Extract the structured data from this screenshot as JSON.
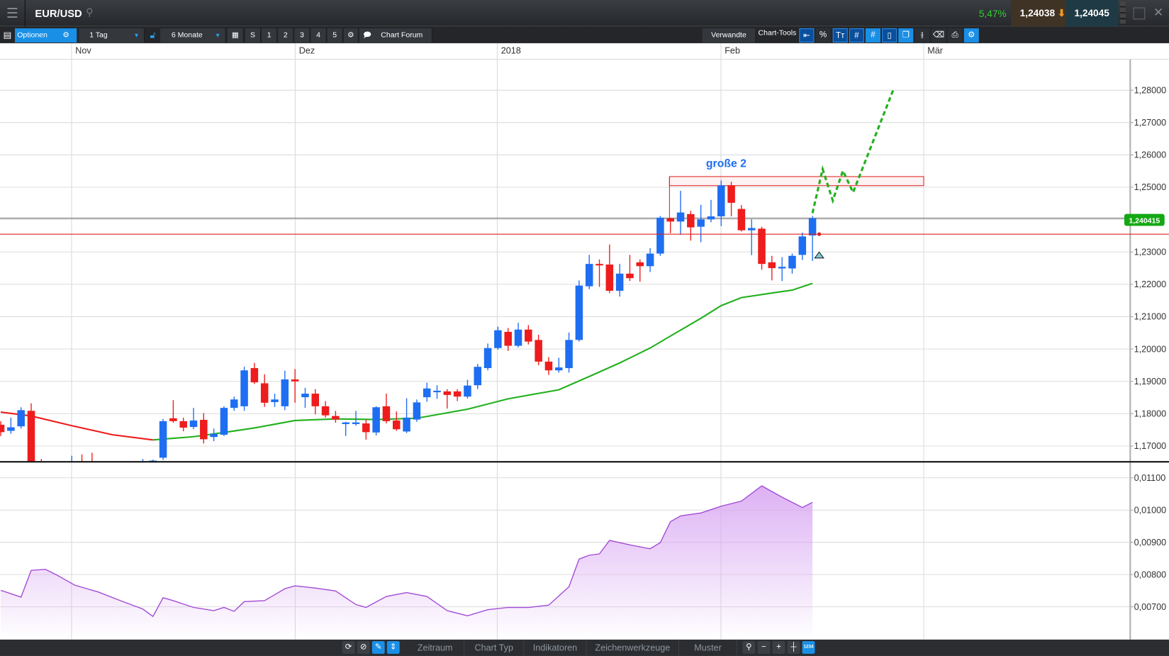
{
  "header": {
    "symbol": "EUR/USD",
    "change": "5,47%",
    "bid": "1,24038",
    "ask": "1,24045"
  },
  "toolbar": {
    "options": "Optionen",
    "interval": "1 Tag",
    "range": "6 Monate",
    "s": "S",
    "n1": "1",
    "n2": "2",
    "n3": "3",
    "n4": "4",
    "n5": "5",
    "forum": "Chart Forum",
    "related": "Verwandte",
    "chart_tools": "Chart-Tools"
  },
  "bottom": {
    "tabs": [
      "Zeitraum",
      "Chart Typ",
      "Indikatoren",
      "Zeichenwerkzeuge",
      "Muster"
    ],
    "zoom_badge": "1234"
  },
  "colors": {
    "up": "#1e6ef2",
    "down": "#ee1c1c",
    "ma_above": "#ee1c1c",
    "ma_below": "#22b01e",
    "oscillator": "#a24ad6",
    "projection": "#22b01e",
    "annotation": "#1e6ef2",
    "price_badge": "#14a814"
  },
  "chart": {
    "type": "candlestick",
    "date_labels": [
      "Nov",
      "Dez",
      "2018",
      "Feb",
      "Mär"
    ],
    "price_ticks": [
      "1,28000",
      "1,27000",
      "1,26000",
      "1,25000",
      "1,23000",
      "1,22000",
      "1,21000",
      "1,20000",
      "1,19000",
      "1,18000",
      "1,17000"
    ],
    "price_tick_values": [
      1.28,
      1.27,
      1.26,
      1.25,
      1.23,
      1.22,
      1.21,
      1.2,
      1.19,
      1.18,
      1.17
    ],
    "ylim": [
      1.1646,
      1.2924
    ],
    "current_price_label": "1,240415",
    "current_price": 1.240415,
    "marker_price": 1.2355,
    "annotation": "große 2",
    "resistance_zone": [
      1.2505,
      1.2533
    ],
    "candles_ohlc": [
      [
        1.1766,
        1.1777,
        1.1731,
        1.1743
      ],
      [
        1.1747,
        1.1788,
        1.1738,
        1.1758
      ],
      [
        1.1761,
        1.182,
        1.1754,
        1.1811
      ],
      [
        1.1809,
        1.1832,
        1.164,
        1.165
      ],
      [
        1.165,
        1.166,
        1.16,
        1.162
      ],
      [
        1.162,
        1.164,
        1.159,
        1.163
      ],
      [
        1.163,
        1.165,
        1.16,
        1.161
      ],
      [
        1.161,
        1.167,
        1.159,
        1.164
      ],
      [
        1.164,
        1.1674,
        1.161,
        1.1625
      ],
      [
        1.1625,
        1.1679,
        1.16,
        1.1615
      ],
      [
        1.1615,
        1.164,
        1.158,
        1.16
      ],
      [
        1.16,
        1.163,
        1.157,
        1.162
      ],
      [
        1.162,
        1.164,
        1.159,
        1.1605
      ],
      [
        1.1605,
        1.163,
        1.158,
        1.162
      ],
      [
        1.162,
        1.166,
        1.16,
        1.164
      ],
      [
        1.164,
        1.1658,
        1.161,
        1.1655
      ],
      [
        1.1664,
        1.1784,
        1.1657,
        1.1777
      ],
      [
        1.1786,
        1.1842,
        1.1772,
        1.1777
      ],
      [
        1.1777,
        1.1788,
        1.1746,
        1.1757
      ],
      [
        1.1759,
        1.1818,
        1.1752,
        1.1779
      ],
      [
        1.1781,
        1.1802,
        1.1708,
        1.1721
      ],
      [
        1.1728,
        1.1754,
        1.1715,
        1.1738
      ],
      [
        1.1735,
        1.1823,
        1.1731,
        1.1818
      ],
      [
        1.1818,
        1.1853,
        1.1809,
        1.1844
      ],
      [
        1.1823,
        1.1945,
        1.1809,
        1.1934
      ],
      [
        1.1941,
        1.1957,
        1.1892,
        1.1897
      ],
      [
        1.1894,
        1.1922,
        1.1821,
        1.1834
      ],
      [
        1.1836,
        1.1862,
        1.1821,
        1.1844
      ],
      [
        1.1823,
        1.1933,
        1.1811,
        1.1906
      ],
      [
        1.1906,
        1.1938,
        1.1834,
        1.19
      ],
      [
        1.1851,
        1.188,
        1.1818,
        1.1862
      ],
      [
        1.1862,
        1.1876,
        1.1798,
        1.1823
      ],
      [
        1.1823,
        1.1839,
        1.1788,
        1.1795
      ],
      [
        1.1793,
        1.1809,
        1.1772,
        1.1782
      ],
      [
        1.1768,
        1.1775,
        1.1731,
        1.1773
      ],
      [
        1.1768,
        1.1809,
        1.1763,
        1.1773
      ],
      [
        1.177,
        1.1782,
        1.172,
        1.1743
      ],
      [
        1.1742,
        1.1823,
        1.1733,
        1.182
      ],
      [
        1.1823,
        1.1862,
        1.177,
        1.1777
      ],
      [
        1.1779,
        1.1807,
        1.1747,
        1.1752
      ],
      [
        1.1745,
        1.1848,
        1.174,
        1.1788
      ],
      [
        1.1782,
        1.1844,
        1.1775,
        1.1835
      ],
      [
        1.1851,
        1.1896,
        1.1837,
        1.1878
      ],
      [
        1.1869,
        1.1888,
        1.1846,
        1.1871
      ],
      [
        1.1869,
        1.1876,
        1.1816,
        1.1858
      ],
      [
        1.1869,
        1.1876,
        1.1839,
        1.1853
      ],
      [
        1.1853,
        1.1905,
        1.1847,
        1.1887
      ],
      [
        1.1888,
        1.1954,
        1.1876,
        1.1945
      ],
      [
        1.1941,
        1.2017,
        1.1934,
        1.2003
      ],
      [
        1.2003,
        1.2069,
        1.1998,
        1.2058
      ],
      [
        1.2053,
        1.2065,
        1.1994,
        1.201
      ],
      [
        1.201,
        1.2081,
        1.2005,
        1.206
      ],
      [
        1.206,
        1.2074,
        1.2014,
        1.2023
      ],
      [
        1.2028,
        1.2044,
        1.195,
        1.1961
      ],
      [
        1.1961,
        1.1975,
        1.192,
        1.1934
      ],
      [
        1.1934,
        1.1973,
        1.1927,
        1.1943
      ],
      [
        1.1941,
        1.2051,
        1.1927,
        1.2028
      ],
      [
        1.2028,
        1.2212,
        1.2023,
        1.2196
      ],
      [
        1.2194,
        1.2291,
        1.2185,
        1.2263
      ],
      [
        1.2263,
        1.2277,
        1.2192,
        1.2261
      ],
      [
        1.2261,
        1.2323,
        1.2173,
        1.218
      ],
      [
        1.218,
        1.2263,
        1.2162,
        1.2233
      ],
      [
        1.2233,
        1.2291,
        1.221,
        1.2219
      ],
      [
        1.2268,
        1.2277,
        1.2208,
        1.2256
      ],
      [
        1.2256,
        1.2312,
        1.2238,
        1.2295
      ],
      [
        1.2295,
        1.2411,
        1.2288,
        1.2406
      ],
      [
        1.2404,
        1.2406,
        1.2358,
        1.2394
      ],
      [
        1.2394,
        1.2489,
        1.2353,
        1.2422
      ],
      [
        1.2417,
        1.2427,
        1.2335,
        1.2376
      ],
      [
        1.2378,
        1.2446,
        1.233,
        1.2401
      ],
      [
        1.2401,
        1.2461,
        1.2392,
        1.241
      ],
      [
        1.241,
        1.2521,
        1.238,
        1.2506
      ],
      [
        1.2506,
        1.2517,
        1.241,
        1.2452
      ],
      [
        1.2433,
        1.2445,
        1.2363,
        1.2367
      ],
      [
        1.2367,
        1.2401,
        1.229,
        1.2374
      ],
      [
        1.2372,
        1.2378,
        1.2245,
        1.2263
      ],
      [
        1.2268,
        1.2288,
        1.2212,
        1.225
      ],
      [
        1.2249,
        1.2284,
        1.221,
        1.2254
      ],
      [
        1.2249,
        1.2295,
        1.2233,
        1.2288
      ],
      [
        1.2291,
        1.236,
        1.2275,
        1.2348
      ],
      [
        1.2351,
        1.2411,
        1.2272,
        1.2404
      ]
    ],
    "moving_average": [
      [
        0,
        1.1805
      ],
      [
        3,
        1.1793
      ],
      [
        7,
        1.1763
      ],
      [
        11,
        1.1735
      ],
      [
        15,
        1.1719
      ],
      [
        19,
        1.1729
      ],
      [
        22,
        1.1742
      ],
      [
        25,
        1.1756
      ],
      [
        29,
        1.1779
      ],
      [
        33,
        1.1784
      ],
      [
        37,
        1.1782
      ],
      [
        41,
        1.1786
      ],
      [
        46,
        1.1814
      ],
      [
        50,
        1.1846
      ],
      [
        55,
        1.1874
      ],
      [
        58,
        1.1915
      ],
      [
        61,
        1.1957
      ],
      [
        64,
        1.2003
      ],
      [
        66,
        1.204
      ],
      [
        69,
        1.2095
      ],
      [
        71,
        1.2134
      ],
      [
        73,
        1.2159
      ],
      [
        76,
        1.2173
      ],
      [
        78,
        1.2182
      ],
      [
        80,
        1.2203
      ]
    ],
    "ma_color_switch_index": 15,
    "projection": [
      [
        80,
        1.242
      ],
      [
        81,
        1.2556
      ],
      [
        82,
        1.2459
      ],
      [
        83,
        1.2551
      ],
      [
        84,
        1.2484
      ],
      [
        88,
        1.2804
      ]
    ],
    "oscillator": {
      "ticks": [
        "0,01100",
        "0,01000",
        "0,00900",
        "0,00800",
        "0,00700"
      ],
      "tick_values": [
        0.011,
        0.01,
        0.009,
        0.008,
        0.007
      ],
      "ylim": [
        0.00605,
        0.01138
      ],
      "points": [
        [
          0,
          0.00751
        ],
        [
          2,
          0.0073
        ],
        [
          3,
          0.00813
        ],
        [
          4.4,
          0.00816
        ],
        [
          5.5,
          0.00799
        ],
        [
          7.3,
          0.00767
        ],
        [
          9.6,
          0.00746
        ],
        [
          11.8,
          0.00719
        ],
        [
          14,
          0.00693
        ],
        [
          15,
          0.0067
        ],
        [
          16,
          0.00728
        ],
        [
          17,
          0.00719
        ],
        [
          19,
          0.00698
        ],
        [
          21,
          0.00688
        ],
        [
          22,
          0.00698
        ],
        [
          23,
          0.00686
        ],
        [
          24,
          0.00716
        ],
        [
          26,
          0.00719
        ],
        [
          28,
          0.00756
        ],
        [
          29,
          0.00765
        ],
        [
          31,
          0.00758
        ],
        [
          33,
          0.00749
        ],
        [
          35,
          0.00707
        ],
        [
          36,
          0.00698
        ],
        [
          38,
          0.00732
        ],
        [
          40,
          0.00744
        ],
        [
          42,
          0.00732
        ],
        [
          44,
          0.00688
        ],
        [
          46,
          0.00672
        ],
        [
          48,
          0.00691
        ],
        [
          50,
          0.00698
        ],
        [
          52,
          0.00698
        ],
        [
          54,
          0.00705
        ],
        [
          56,
          0.00762
        ],
        [
          57,
          0.00848
        ],
        [
          58,
          0.0086
        ],
        [
          59,
          0.00864
        ],
        [
          60,
          0.00906
        ],
        [
          62,
          0.00892
        ],
        [
          64,
          0.0088
        ],
        [
          65,
          0.00899
        ],
        [
          66,
          0.00964
        ],
        [
          67,
          0.00982
        ],
        [
          69,
          0.00991
        ],
        [
          71,
          0.01012
        ],
        [
          73,
          0.01028
        ],
        [
          75,
          0.01075
        ],
        [
          77,
          0.0104
        ],
        [
          79,
          0.01008
        ],
        [
          80,
          0.01024
        ]
      ]
    }
  }
}
